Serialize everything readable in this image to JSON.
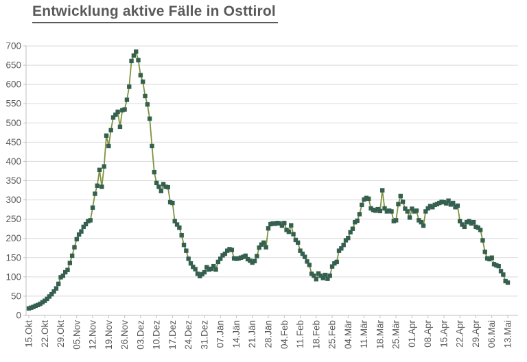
{
  "chart_data": {
    "type": "line",
    "title": "Entwicklung aktive Fälle in Osttirol",
    "xlabel": "",
    "ylabel": "",
    "ylim": [
      0,
      700
    ],
    "y_tick_labels": [
      "0",
      "50",
      "100",
      "150",
      "200",
      "250",
      "300",
      "350",
      "400",
      "450",
      "500",
      "550",
      "600",
      "650",
      "700"
    ],
    "x_tick_labels": [
      "15.Okt",
      "22.Okt",
      "29.Okt",
      "05.Nov",
      "12.Nov",
      "19.Nov",
      "26.Nov",
      "03.Dez",
      "10.Dez",
      "17.Dez",
      "24.Dez",
      "31.Dez",
      "07.Jän",
      "14.Jän",
      "21.Jän",
      "28.Jän",
      "04.Feb",
      "11.Feb",
      "18.Feb",
      "25.Feb",
      "04.Mär",
      "11.Mär",
      "18.Mär",
      "25.Mär",
      "01.Apr",
      "08.Apr",
      "15.Apr",
      "22.Apr",
      "29.Apr",
      "06.Mai",
      "13.Mai"
    ],
    "x_tick_interval_days": 7,
    "grid": "horizontal",
    "legend_position": "none",
    "line_color": "#7F923D",
    "marker_color": "#35604F",
    "marker_shape": "square",
    "axis_color": "#BFBFBF",
    "gridline_color": "#D9D9D9",
    "label_color": "#595959",
    "title_color": "#595959",
    "values": [
      18,
      20,
      22,
      25,
      27,
      30,
      34,
      38,
      43,
      49,
      55,
      62,
      70,
      82,
      99,
      103,
      112,
      118,
      136,
      155,
      177,
      198,
      210,
      218,
      230,
      237,
      245,
      247,
      280,
      316,
      337,
      378,
      334,
      387,
      467,
      440,
      481,
      514,
      521,
      529,
      490,
      533,
      535,
      560,
      594,
      661,
      675,
      685,
      663,
      624,
      607,
      570,
      548,
      511,
      440,
      372,
      344,
      334,
      323,
      341,
      334,
      333,
      294,
      292,
      245,
      236,
      228,
      208,
      183,
      168,
      147,
      135,
      126,
      120,
      108,
      102,
      107,
      112,
      125,
      119,
      121,
      128,
      119,
      139,
      147,
      156,
      160,
      168,
      172,
      170,
      148,
      147,
      148,
      150,
      152,
      155,
      146,
      142,
      137,
      141,
      154,
      176,
      184,
      189,
      177,
      226,
      237,
      239,
      238,
      240,
      239,
      233,
      240,
      222,
      217,
      234,
      211,
      196,
      189,
      168,
      160,
      152,
      140,
      131,
      108,
      103,
      94,
      109,
      103,
      97,
      105,
      95,
      103,
      127,
      135,
      139,
      168,
      174,
      183,
      195,
      201,
      216,
      225,
      242,
      246,
      263,
      287,
      301,
      305,
      303,
      278,
      274,
      272,
      276,
      271,
      325,
      278,
      270,
      272,
      270,
      245,
      247,
      289,
      310,
      295,
      277,
      270,
      254,
      277,
      270,
      272,
      247,
      242,
      233,
      270,
      278,
      284,
      281,
      287,
      289,
      292,
      295,
      294,
      291,
      298,
      288,
      292,
      281,
      285,
      245,
      236,
      230,
      242,
      245,
      239,
      242,
      230,
      228,
      222,
      195,
      165,
      148,
      146,
      150,
      133,
      130,
      128,
      115,
      106,
      89,
      85
    ]
  }
}
